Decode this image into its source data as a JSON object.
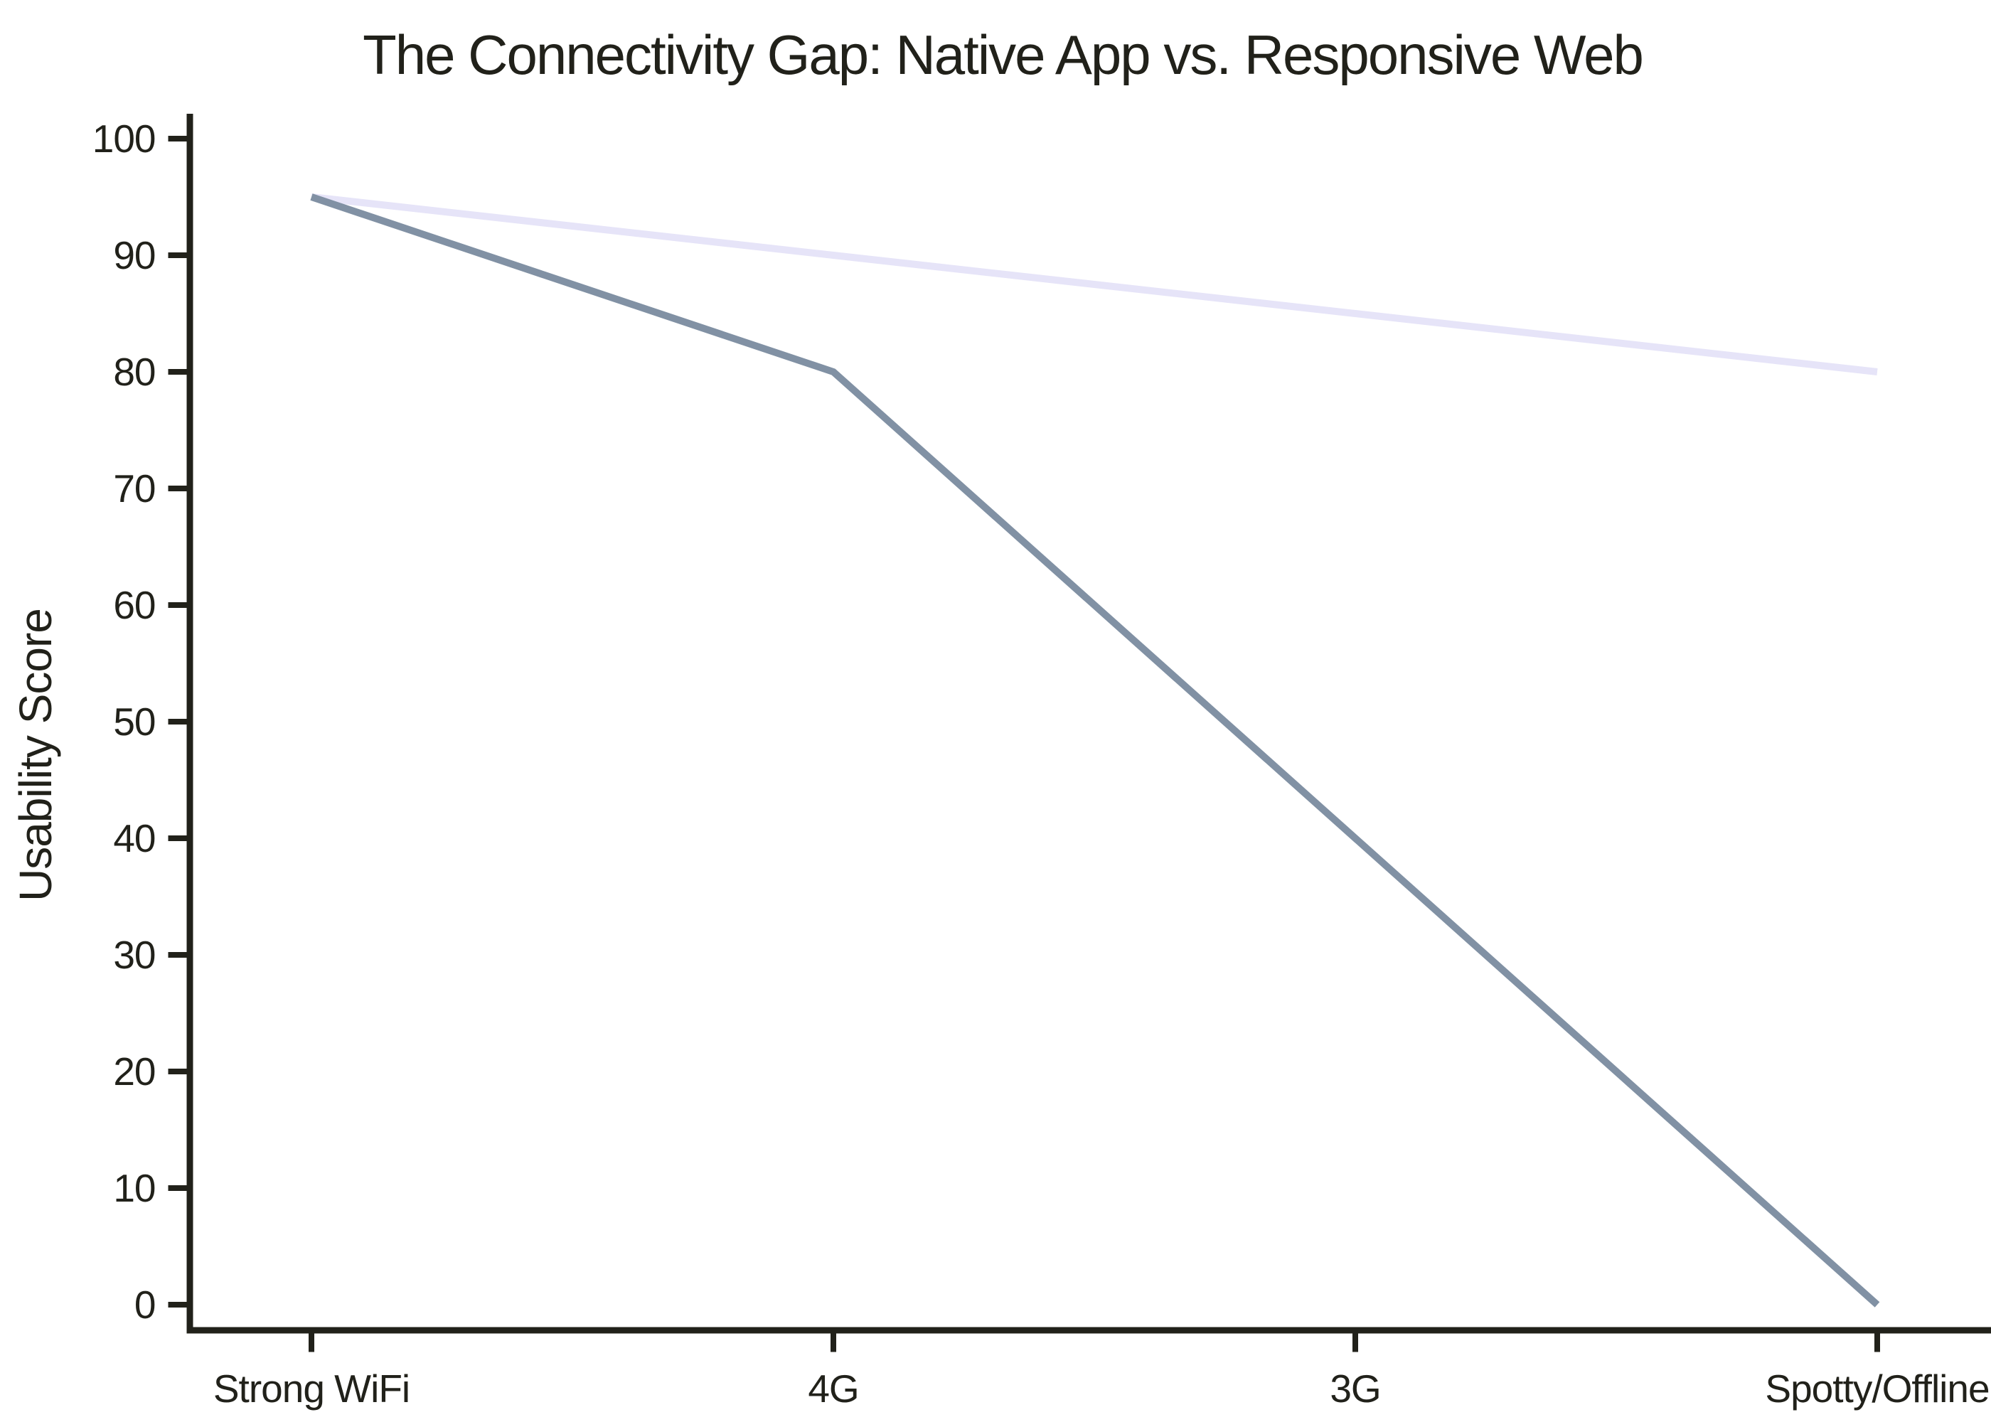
{
  "page": {
    "background": "#ffffff"
  },
  "chart_data": {
    "type": "line",
    "title": "The Connectivity Gap: Native App vs. Responsive Web",
    "xlabel": "",
    "ylabel": "Usability Score",
    "categories": [
      "Strong WiFi",
      "4G",
      "3G",
      "Spotty/Offline"
    ],
    "series": [
      {
        "name": "Native App",
        "values": [
          95,
          90,
          85,
          80
        ],
        "color": "#e6e4f8"
      },
      {
        "name": "Responsive Web",
        "values": [
          95,
          80,
          40,
          0
        ],
        "color": "#8191a4"
      }
    ],
    "ylim": [
      0,
      100
    ],
    "ytick_step": 10,
    "yticks": [
      0,
      10,
      20,
      30,
      40,
      50,
      60,
      70,
      80,
      90,
      100
    ],
    "grid": false,
    "legend_position": "none",
    "axis_color": "#21211a",
    "text_color": "#21211a"
  }
}
